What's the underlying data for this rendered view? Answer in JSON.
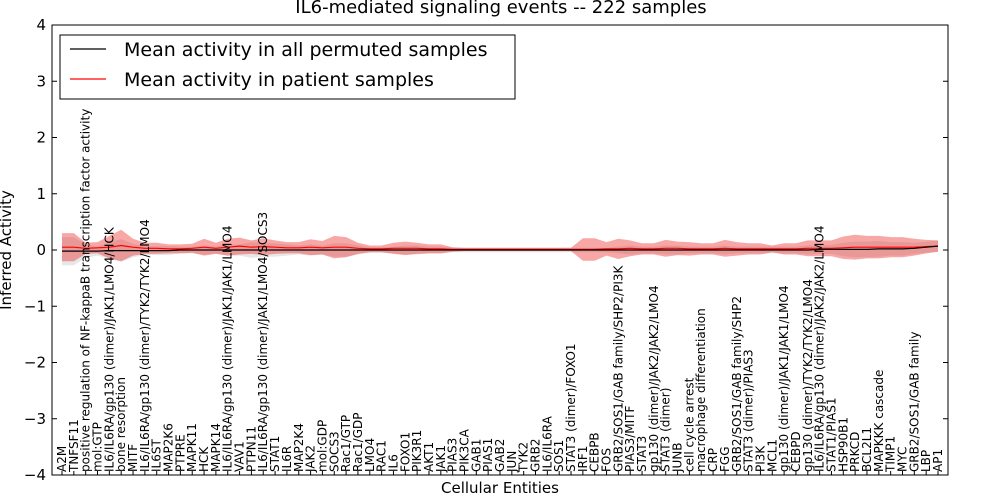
{
  "chart_data": {
    "type": "line",
    "title": "IL6-mediated signaling events -- 222 samples",
    "xlabel": "Cellular Entities",
    "ylabel": "Inferred Activity",
    "ylim": [
      -4,
      4
    ],
    "yticks": [
      -4,
      -3,
      -2,
      -1,
      0,
      1,
      2,
      3,
      4
    ],
    "ytick_labels": [
      "−4",
      "−3",
      "−2",
      "−1",
      "0",
      "1",
      "2",
      "3",
      "4"
    ],
    "grid": false,
    "legend_position": "top-left",
    "categories": [
      "A2M",
      "TNFSF11",
      "positive regulation of NF-kappaB transcription factor activity",
      "mol:GTP",
      "IL6/IL6RA/gp130 (dimer)/JAK1/LMO4/HCK",
      "bone resorption",
      "MITF",
      "IL6/IL6RA/gp130 (dimer)/TYK2/TYK2/LMO4",
      "IL6ST",
      "MAP2K6",
      "PTPRE",
      "MAPK11",
      "HCK",
      "MAPK14",
      "IL6/IL6RA/gp130 (dimer)/JAK1/JAK1/LMO4",
      "VAV1",
      "PTPN11",
      "IL6/IL6RA/gp130 (dimer)/JAK1/LMO4/SOCS3",
      "STAT1",
      "IL6R",
      "MAP2K4",
      "JAK2",
      "mol:GDP",
      "SOCS3",
      "Rac1/GTP",
      "Rac1/GDP",
      "LMO4",
      "RAC1",
      "IL6",
      "FOXO1",
      "PIK3R1",
      "AKT1",
      "JAK1",
      "PIAS3",
      "PIK3CA",
      "GAB1",
      "PIAS1",
      "GAB2",
      "JUN",
      "TYK2",
      "GRB2",
      "IL6/IL6RA",
      "SOS1",
      "STAT3 (dimer)/FOXO1",
      "IRF1",
      "CEBPB",
      "FOS",
      "GRB2/SOS1/GAB family/SHP2/PI3K",
      "PIAS3/MITF",
      "STAT3",
      "gp130 (dimer)/JAK2/JAK2/LMO4",
      "STAT3 (dimer)",
      "JUNB",
      "cell cycle arrest",
      "macrophage differentiation",
      "CRP",
      "FGG",
      "GRB2/SOS1/GAB family/SHP2",
      "STAT3 (dimer)/PIAS3",
      "PI3K",
      "MCL1",
      "gp130 (dimer)/JAK1/JAK1/LMO4",
      "CEBPD",
      "gp130 (dimer)/TYK2/TYK2/LMO4",
      "IL6/IL6RA/gp130 (dimer)/JAK2/JAK2/LMO4",
      "STAT1/PIAS1",
      "HSP90B1",
      "PRKCD",
      "BCL2L1",
      "MAPKKK cascade",
      "TIMP1",
      "MYC",
      "GRB2/SOS1/GAB family",
      "LBP",
      "AP1"
    ],
    "series": [
      {
        "name": "Mean activity in all permuted samples",
        "color": "#000000",
        "values": [
          -0.02,
          -0.02,
          -0.02,
          -0.02,
          -0.01,
          -0.01,
          -0.01,
          -0.01,
          -0.01,
          -0.01,
          0.0,
          0.0,
          0.0,
          0.0,
          0.0,
          0.0,
          0.0,
          0.0,
          0.0,
          0.0,
          0.0,
          0.0,
          0.0,
          0.0,
          0.0,
          0.0,
          0.0,
          0.0,
          0.0,
          0.0,
          0.0,
          0.0,
          0.0,
          0.0,
          0.0,
          0.0,
          0.0,
          0.0,
          0.0,
          0.0,
          0.0,
          0.0,
          0.0,
          0.0,
          0.0,
          0.0,
          0.0,
          0.0,
          0.0,
          0.0,
          0.0,
          0.0,
          0.0,
          0.0,
          0.0,
          0.0,
          0.0,
          0.0,
          0.0,
          0.0,
          0.0,
          0.0,
          0.0,
          0.0,
          0.01,
          0.01,
          0.01,
          0.01,
          0.01,
          0.02,
          0.02,
          0.02,
          0.03,
          0.05,
          0.07
        ],
        "spread": [
          0.25,
          0.25,
          0.12,
          0.08,
          0.15,
          0.2,
          0.12,
          0.08,
          0.08,
          0.08,
          0.06,
          0.06,
          0.08,
          0.06,
          0.1,
          0.1,
          0.14,
          0.12,
          0.12,
          0.1,
          0.08,
          0.1,
          0.08,
          0.12,
          0.12,
          0.08,
          0.05,
          0.05,
          0.06,
          0.08,
          0.08,
          0.06,
          0.06,
          0.04,
          0.04,
          0.04,
          0.04,
          0.04,
          0.04,
          0.04,
          0.04,
          0.04,
          0.04,
          0.04,
          0.04,
          0.04,
          0.04,
          0.06,
          0.08,
          0.06,
          0.06,
          0.08,
          0.08,
          0.06,
          0.06,
          0.06,
          0.08,
          0.06,
          0.06,
          0.06,
          0.06,
          0.06,
          0.06,
          0.08,
          0.08,
          0.08,
          0.12,
          0.14,
          0.14,
          0.14,
          0.12,
          0.12,
          0.1,
          0.1,
          0.1
        ]
      },
      {
        "name": "Mean activity in patient samples",
        "color": "#ff0000",
        "values": [
          0.05,
          0.05,
          0.03,
          0.04,
          0.05,
          0.08,
          0.05,
          0.03,
          0.03,
          0.02,
          0.02,
          0.03,
          0.05,
          0.03,
          0.05,
          0.07,
          0.05,
          0.06,
          0.05,
          0.04,
          0.04,
          0.05,
          0.04,
          0.05,
          0.05,
          0.03,
          0.02,
          0.02,
          0.03,
          0.03,
          0.03,
          0.02,
          0.02,
          0.01,
          0.01,
          0.01,
          0.01,
          0.01,
          0.01,
          0.01,
          0.01,
          0.01,
          0.01,
          0.01,
          0.01,
          0.01,
          0.02,
          0.02,
          0.03,
          0.02,
          0.02,
          0.03,
          0.03,
          0.02,
          0.02,
          0.02,
          0.03,
          0.02,
          0.02,
          0.02,
          0.02,
          0.02,
          0.02,
          0.03,
          0.03,
          0.03,
          0.04,
          0.05,
          0.05,
          0.05,
          0.05,
          0.05,
          0.05,
          0.06,
          0.07
        ],
        "spread": [
          0.25,
          0.25,
          0.1,
          0.1,
          0.2,
          0.28,
          0.15,
          0.1,
          0.1,
          0.08,
          0.08,
          0.08,
          0.15,
          0.1,
          0.15,
          0.15,
          0.12,
          0.15,
          0.12,
          0.1,
          0.1,
          0.14,
          0.12,
          0.2,
          0.18,
          0.1,
          0.06,
          0.06,
          0.1,
          0.12,
          0.1,
          0.08,
          0.08,
          0.04,
          0.03,
          0.03,
          0.03,
          0.03,
          0.03,
          0.03,
          0.03,
          0.03,
          0.03,
          0.03,
          0.2,
          0.2,
          0.12,
          0.18,
          0.14,
          0.1,
          0.1,
          0.15,
          0.12,
          0.12,
          0.1,
          0.1,
          0.15,
          0.12,
          0.1,
          0.1,
          0.06,
          0.1,
          0.1,
          0.14,
          0.14,
          0.14,
          0.2,
          0.22,
          0.2,
          0.2,
          0.18,
          0.18,
          0.15,
          0.12,
          0.1
        ]
      }
    ]
  }
}
